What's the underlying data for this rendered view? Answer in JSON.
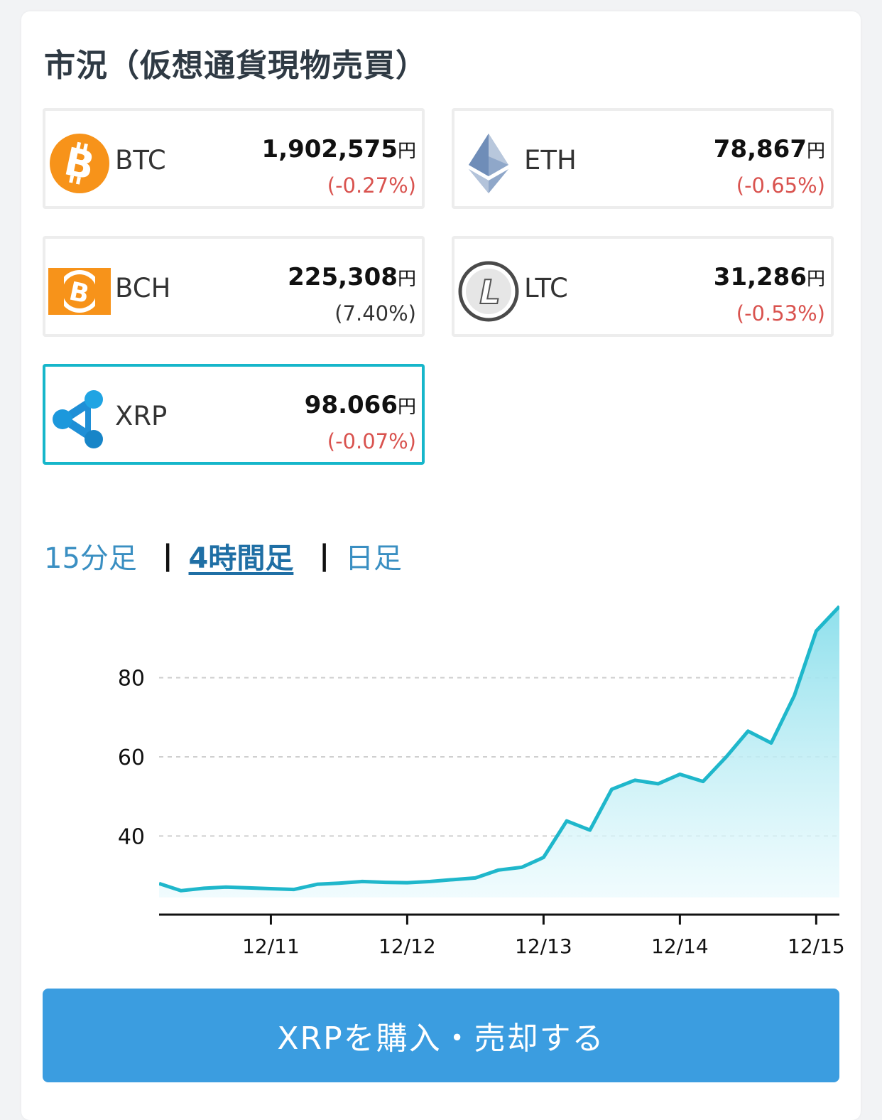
{
  "header": {
    "title": "市況（仮想通貨現物売買）"
  },
  "coins": [
    {
      "symbol": "BTC",
      "price": "1,902,575",
      "currency": "円",
      "change": "(-0.27%)",
      "icon": "bitcoin-icon",
      "color": "#f7931a"
    },
    {
      "symbol": "ETH",
      "price": "78,867",
      "currency": "円",
      "change": "(-0.65%)",
      "icon": "ethereum-icon",
      "color": "#627eea"
    },
    {
      "symbol": "BCH",
      "price": "225,308",
      "currency": "円",
      "change": "(7.40%)",
      "icon": "bitcoin-cash-icon",
      "color": "#f7931a"
    },
    {
      "symbol": "LTC",
      "price": "31,286",
      "currency": "円",
      "change": "(-0.53%)",
      "icon": "litecoin-icon",
      "color": "#4a4a4a"
    },
    {
      "symbol": "XRP",
      "price": "98.066",
      "currency": "円",
      "change": "(-0.07%)",
      "icon": "ripple-icon",
      "color": "#1f8fd6"
    }
  ],
  "tabs": [
    {
      "label": "15分足",
      "active": false
    },
    {
      "label": "4時間足",
      "active": true
    },
    {
      "label": "日足",
      "active": false
    }
  ],
  "tab_separator": "|",
  "chart_data": {
    "type": "area",
    "x_unit": "day",
    "x_start": "12/10",
    "x_tick_labels": [
      "12/11",
      "12/12",
      "12/13",
      "12/14",
      "12/15"
    ],
    "x_tick_positions": [
      1,
      2,
      3,
      4,
      5
    ],
    "x_range": [
      0.18,
      5.17
    ],
    "y_tick_labels": [
      "40",
      "60",
      "80"
    ],
    "y_ticks": [
      40,
      60,
      80
    ],
    "y_range": [
      20.5,
      104
    ],
    "grid": true,
    "line_color": "#1fb7cb",
    "fill_color": "#8fe0ec",
    "x": [
      0.18,
      0.34,
      0.51,
      0.67,
      0.84,
      1.0,
      1.17,
      1.34,
      1.5,
      1.67,
      1.84,
      2.0,
      2.17,
      2.34,
      2.5,
      2.67,
      2.84,
      3.0,
      3.17,
      3.34,
      3.5,
      3.67,
      3.84,
      4.0,
      4.17,
      4.34,
      4.5,
      4.67,
      4.84,
      5.0,
      5.17
    ],
    "y": [
      28.0,
      26.2,
      26.8,
      27.1,
      26.9,
      26.7,
      26.5,
      27.8,
      28.1,
      28.5,
      28.3,
      28.2,
      28.5,
      29.0,
      29.4,
      31.4,
      32.1,
      34.6,
      43.8,
      41.5,
      51.8,
      54.1,
      53.2,
      55.6,
      53.8,
      60.0,
      66.5,
      63.5,
      75.5,
      91.8,
      98.0
    ]
  },
  "buy_button": {
    "label": "XRPを購入・売却する"
  }
}
